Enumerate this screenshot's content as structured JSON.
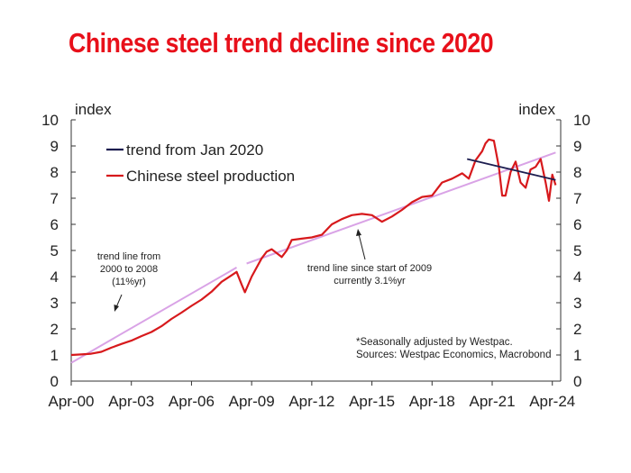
{
  "page": {
    "title": "Chinese steel trend decline since 2020",
    "title_color": "#e8101a"
  },
  "chart_data": {
    "type": "line",
    "left_axis_label": "index",
    "right_axis_label": "index",
    "ylim": [
      0,
      10
    ],
    "yticks": [
      0,
      1,
      2,
      3,
      4,
      5,
      6,
      7,
      8,
      9,
      10
    ],
    "xlim": [
      "2000-04",
      "2024-09"
    ],
    "xticks": [
      {
        "date": "2000-04",
        "label": "Apr-00"
      },
      {
        "date": "2003-04",
        "label": "Apr-03"
      },
      {
        "date": "2006-04",
        "label": "Apr-06"
      },
      {
        "date": "2009-04",
        "label": "Apr-09"
      },
      {
        "date": "2012-04",
        "label": "Apr-12"
      },
      {
        "date": "2015-04",
        "label": "Apr-15"
      },
      {
        "date": "2018-04",
        "label": "Apr-18"
      },
      {
        "date": "2021-04",
        "label": "Apr-21"
      },
      {
        "date": "2024-04",
        "label": "Apr-24"
      }
    ],
    "legend_position": "top-left",
    "series": [
      {
        "name": "Chinese steel production",
        "color": "#d7191c",
        "points": [
          [
            "2000-04",
            1.0
          ],
          [
            "2000-10",
            1.02
          ],
          [
            "2001-04",
            1.05
          ],
          [
            "2001-10",
            1.12
          ],
          [
            "2002-04",
            1.28
          ],
          [
            "2002-10",
            1.42
          ],
          [
            "2003-04",
            1.55
          ],
          [
            "2003-10",
            1.72
          ],
          [
            "2004-04",
            1.88
          ],
          [
            "2004-10",
            2.1
          ],
          [
            "2005-04",
            2.38
          ],
          [
            "2005-10",
            2.62
          ],
          [
            "2006-04",
            2.88
          ],
          [
            "2006-10",
            3.12
          ],
          [
            "2007-04",
            3.42
          ],
          [
            "2007-10",
            3.8
          ],
          [
            "2008-04",
            4.05
          ],
          [
            "2008-07",
            4.18
          ],
          [
            "2008-10",
            3.7
          ],
          [
            "2008-12",
            3.4
          ],
          [
            "2009-04",
            4.0
          ],
          [
            "2009-10",
            4.7
          ],
          [
            "2010-01",
            4.95
          ],
          [
            "2010-04",
            5.05
          ],
          [
            "2010-10",
            4.75
          ],
          [
            "2011-01",
            5.0
          ],
          [
            "2011-04",
            5.4
          ],
          [
            "2011-10",
            5.45
          ],
          [
            "2012-04",
            5.5
          ],
          [
            "2012-10",
            5.6
          ],
          [
            "2013-04",
            6.0
          ],
          [
            "2013-10",
            6.2
          ],
          [
            "2014-04",
            6.35
          ],
          [
            "2014-10",
            6.4
          ],
          [
            "2015-04",
            6.35
          ],
          [
            "2015-10",
            6.1
          ],
          [
            "2016-04",
            6.3
          ],
          [
            "2016-10",
            6.55
          ],
          [
            "2017-04",
            6.85
          ],
          [
            "2017-10",
            7.05
          ],
          [
            "2018-04",
            7.1
          ],
          [
            "2018-10",
            7.6
          ],
          [
            "2019-04",
            7.75
          ],
          [
            "2019-10",
            7.95
          ],
          [
            "2020-02",
            7.75
          ],
          [
            "2020-06",
            8.45
          ],
          [
            "2020-10",
            8.8
          ],
          [
            "2020-12",
            9.1
          ],
          [
            "2021-02",
            9.25
          ],
          [
            "2021-05",
            9.2
          ],
          [
            "2021-08",
            8.2
          ],
          [
            "2021-10",
            7.1
          ],
          [
            "2021-12",
            7.1
          ],
          [
            "2022-03",
            8.0
          ],
          [
            "2022-06",
            8.4
          ],
          [
            "2022-09",
            7.6
          ],
          [
            "2022-12",
            7.4
          ],
          [
            "2023-03",
            8.1
          ],
          [
            "2023-06",
            8.2
          ],
          [
            "2023-09",
            8.5
          ],
          [
            "2023-12",
            7.6
          ],
          [
            "2024-02",
            6.9
          ],
          [
            "2024-04",
            7.9
          ],
          [
            "2024-06",
            7.5
          ]
        ]
      },
      {
        "name": "trend from Jan 2020",
        "color": "#1c1d4f",
        "points": [
          [
            "2020-01",
            8.5
          ],
          [
            "2024-06",
            7.7
          ]
        ]
      }
    ],
    "trend_lines": [
      {
        "color": "#d9a3e6",
        "points": [
          [
            "2000-04",
            0.7
          ],
          [
            "2008-07",
            4.35
          ]
        ]
      },
      {
        "color": "#d9a3e6",
        "points": [
          [
            "2009-01",
            4.5
          ],
          [
            "2024-06",
            8.75
          ]
        ]
      }
    ],
    "annotations": [
      {
        "lines": [
          "trend line from",
          "2000 to 2008",
          "(11%yr)"
        ]
      },
      {
        "lines": [
          "trend line since start of 2009",
          "currently 3.1%yr"
        ]
      }
    ],
    "source_note": [
      "*Seasonally adjusted by Westpac.",
      "Sources: Westpac Economics, Macrobond"
    ]
  }
}
